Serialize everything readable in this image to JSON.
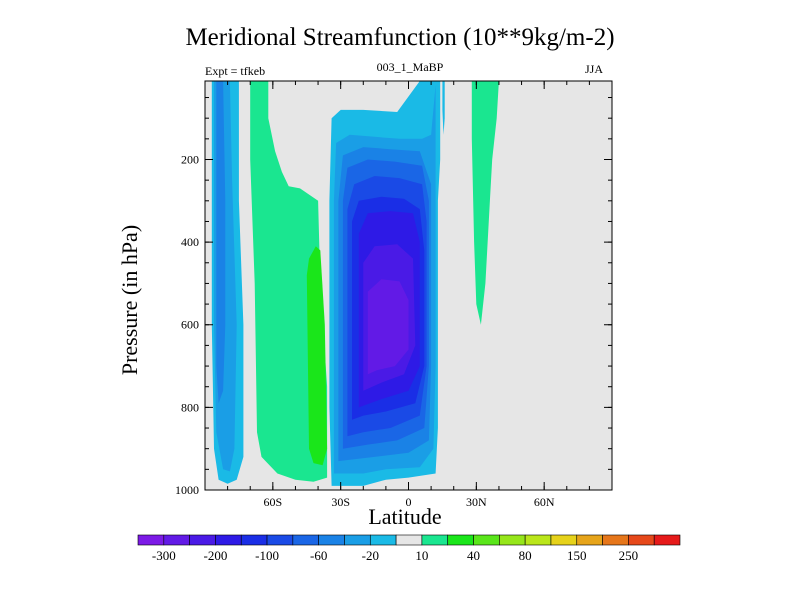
{
  "chart_data": {
    "type": "heatmap",
    "title": "Meridional Streamfunction (10**9kg/m-2)",
    "subtitle_left": "Expt = tfkeb",
    "subtitle_center": "003_1_MaBP",
    "subtitle_right": "JJA",
    "xlabel": "Latitude",
    "ylabel": "Pressure (in hPa)",
    "xlim": [
      -90,
      90
    ],
    "ylim": [
      1000,
      10
    ],
    "x_ticks": [
      {
        "value": -60,
        "label": "60S"
      },
      {
        "value": -30,
        "label": "30S"
      },
      {
        "value": 0,
        "label": "0"
      },
      {
        "value": 30,
        "label": "30N"
      },
      {
        "value": 60,
        "label": "60N"
      }
    ],
    "y_ticks": [
      {
        "value": 200,
        "label": "200"
      },
      {
        "value": 400,
        "label": "400"
      },
      {
        "value": 600,
        "label": "600"
      },
      {
        "value": 800,
        "label": "800"
      },
      {
        "value": 1000,
        "label": "1000"
      }
    ],
    "background_color": "#e6e6e6",
    "colorbar": {
      "colors": [
        "#7c1ae6",
        "#621ae6",
        "#4a1ae6",
        "#2e1ae6",
        "#1a2ee6",
        "#1a4ae6",
        "#1a66e6",
        "#1a82e6",
        "#1a9ee6",
        "#1abae6",
        "#e6e6e6",
        "#1ae690",
        "#1ae61a",
        "#5ae61a",
        "#96e61a",
        "#bae61a",
        "#e6d21a",
        "#e6a41a",
        "#e6761a",
        "#e6481a",
        "#e61a1a"
      ],
      "labels": [
        {
          "after_box": 1,
          "text": "-300"
        },
        {
          "after_box": 3,
          "text": "-200"
        },
        {
          "after_box": 5,
          "text": "-100"
        },
        {
          "after_box": 7,
          "text": "-60"
        },
        {
          "after_box": 9,
          "text": "-20"
        },
        {
          "after_box": 11,
          "text": "10"
        },
        {
          "after_box": 13,
          "text": "40"
        },
        {
          "after_box": 15,
          "text": "80"
        },
        {
          "after_box": 17,
          "text": "150"
        },
        {
          "after_box": 19,
          "text": "250"
        }
      ]
    },
    "contours": [
      {
        "name": "sh-polar-cell",
        "color": "#1abae6",
        "points": [
          [
            -87,
            10
          ],
          [
            -87,
            600
          ],
          [
            -86,
            900
          ],
          [
            -84,
            975
          ],
          [
            -80,
            985
          ],
          [
            -76,
            975
          ],
          [
            -73,
            920
          ],
          [
            -73,
            600
          ],
          [
            -75,
            300
          ],
          [
            -75,
            10
          ]
        ]
      },
      {
        "name": "sh-polar-cell",
        "color": "#1a9ee6",
        "points": [
          [
            -86,
            10
          ],
          [
            -86,
            600
          ],
          [
            -85,
            860
          ],
          [
            -82,
            950
          ],
          [
            -79,
            955
          ],
          [
            -77,
            900
          ],
          [
            -76,
            600
          ],
          [
            -78,
            250
          ],
          [
            -79,
            10
          ]
        ]
      },
      {
        "name": "sh-polar-cell",
        "color": "#1a82e6",
        "points": [
          [
            -85,
            10
          ],
          [
            -85,
            700
          ],
          [
            -84,
            790
          ],
          [
            -82,
            760
          ],
          [
            -81,
            600
          ],
          [
            -81,
            300
          ],
          [
            -82,
            10
          ]
        ]
      },
      {
        "name": "sh-ferrel-positive",
        "color": "#1ae690",
        "points": [
          [
            -70,
            10
          ],
          [
            -70,
            200
          ],
          [
            -68,
            500
          ],
          [
            -67,
            860
          ],
          [
            -65,
            920
          ],
          [
            -58,
            960
          ],
          [
            -50,
            975
          ],
          [
            -42,
            980
          ],
          [
            -36,
            970
          ],
          [
            -36,
            750
          ],
          [
            -39,
            500
          ],
          [
            -40,
            300
          ],
          [
            -48,
            270
          ],
          [
            -53,
            265
          ],
          [
            -56,
            230
          ],
          [
            -59,
            180
          ],
          [
            -62,
            100
          ],
          [
            -62,
            10
          ]
        ]
      },
      {
        "name": "sh-ferrel-positive",
        "color": "#1ae61a",
        "points": [
          [
            -45,
            480
          ],
          [
            -44,
            900
          ],
          [
            -42,
            935
          ],
          [
            -38,
            940
          ],
          [
            -36,
            900
          ],
          [
            -37,
            600
          ],
          [
            -39,
            420
          ],
          [
            -41,
            410
          ],
          [
            -44,
            440
          ]
        ]
      },
      {
        "name": "hadley-cell",
        "color": "#1abae6",
        "points": [
          [
            -34,
            990
          ],
          [
            -35,
            800
          ],
          [
            -35,
            300
          ],
          [
            -34,
            100
          ],
          [
            -30,
            80
          ],
          [
            -20,
            80
          ],
          [
            -5,
            85
          ],
          [
            5,
            10
          ],
          [
            14,
            10
          ],
          [
            14,
            200
          ],
          [
            13,
            300
          ],
          [
            13,
            700
          ],
          [
            13,
            850
          ],
          [
            12,
            960
          ],
          [
            0,
            970
          ],
          [
            -10,
            975
          ],
          [
            -20,
            990
          ],
          [
            -30,
            990
          ]
        ]
      },
      {
        "name": "hadley-cell",
        "color": "#1a9ee6",
        "points": [
          [
            -33,
            960
          ],
          [
            -33,
            300
          ],
          [
            -32,
            160
          ],
          [
            -26,
            140
          ],
          [
            -15,
            145
          ],
          [
            -4,
            150
          ],
          [
            6,
            150
          ],
          [
            10,
            140
          ],
          [
            12,
            20
          ],
          [
            12,
            200
          ],
          [
            12,
            700
          ],
          [
            11,
            900
          ],
          [
            5,
            945
          ],
          [
            -10,
            950
          ],
          [
            -20,
            960
          ]
        ]
      },
      {
        "name": "hadley-cell",
        "color": "#1a82e6",
        "points": [
          [
            -31,
            930
          ],
          [
            -31,
            300
          ],
          [
            -29,
            190
          ],
          [
            -20,
            170
          ],
          [
            -8,
            175
          ],
          [
            5,
            180
          ],
          [
            10,
            260
          ],
          [
            10,
            700
          ],
          [
            9,
            880
          ],
          [
            0,
            910
          ],
          [
            -15,
            920
          ]
        ]
      },
      {
        "name": "hadley-cell",
        "color": "#1a66e6",
        "points": [
          [
            -29,
            900
          ],
          [
            -29,
            300
          ],
          [
            -27,
            220
          ],
          [
            -18,
            200
          ],
          [
            -6,
            205
          ],
          [
            6,
            215
          ],
          [
            9,
            300
          ],
          [
            9,
            700
          ],
          [
            7,
            850
          ],
          [
            -5,
            880
          ],
          [
            -18,
            890
          ]
        ]
      },
      {
        "name": "hadley-cell",
        "color": "#1a4ae6",
        "points": [
          [
            -27,
            870
          ],
          [
            -27,
            320
          ],
          [
            -24,
            260
          ],
          [
            -15,
            240
          ],
          [
            -4,
            245
          ],
          [
            6,
            260
          ],
          [
            8,
            350
          ],
          [
            8,
            700
          ],
          [
            5,
            820
          ],
          [
            -8,
            850
          ],
          [
            -20,
            860
          ]
        ]
      },
      {
        "name": "hadley-cell",
        "color": "#1a2ee6",
        "points": [
          [
            -25,
            830
          ],
          [
            -25,
            350
          ],
          [
            -22,
            300
          ],
          [
            -12,
            290
          ],
          [
            -2,
            295
          ],
          [
            5,
            320
          ],
          [
            7,
            420
          ],
          [
            7,
            700
          ],
          [
            3,
            790
          ],
          [
            -10,
            810
          ],
          [
            -20,
            820
          ]
        ]
      },
      {
        "name": "hadley-cell",
        "color": "#2e1ae6",
        "points": [
          [
            -22,
            800
          ],
          [
            -22,
            380
          ],
          [
            -18,
            330
          ],
          [
            -8,
            325
          ],
          [
            2,
            330
          ],
          [
            5,
            400
          ],
          [
            5,
            700
          ],
          [
            0,
            760
          ],
          [
            -12,
            780
          ]
        ]
      },
      {
        "name": "hadley-cell",
        "color": "#4a1ae6",
        "points": [
          [
            -20,
            760
          ],
          [
            -20,
            450
          ],
          [
            -15,
            410
          ],
          [
            -5,
            405
          ],
          [
            2,
            440
          ],
          [
            3,
            650
          ],
          [
            -2,
            720
          ],
          [
            -12,
            740
          ]
        ]
      },
      {
        "name": "hadley-cell",
        "color": "#621ae6",
        "points": [
          [
            -18,
            720
          ],
          [
            -18,
            520
          ],
          [
            -12,
            490
          ],
          [
            -4,
            495
          ],
          [
            0,
            540
          ],
          [
            0,
            660
          ],
          [
            -6,
            700
          ],
          [
            -14,
            710
          ]
        ]
      },
      {
        "name": "nh-ferrel",
        "color": "#1ae690",
        "points": [
          [
            28,
            10
          ],
          [
            28,
            150
          ],
          [
            29,
            400
          ],
          [
            30,
            550
          ],
          [
            32,
            600
          ],
          [
            34,
            500
          ],
          [
            36,
            300
          ],
          [
            37,
            200
          ],
          [
            39,
            100
          ],
          [
            40,
            10
          ]
        ]
      },
      {
        "name": "nh-thin-band",
        "color": "#1abae6",
        "points": [
          [
            16,
            10
          ],
          [
            16,
            100
          ],
          [
            15.5,
            140
          ],
          [
            15,
            80
          ],
          [
            15,
            10
          ]
        ]
      }
    ]
  }
}
